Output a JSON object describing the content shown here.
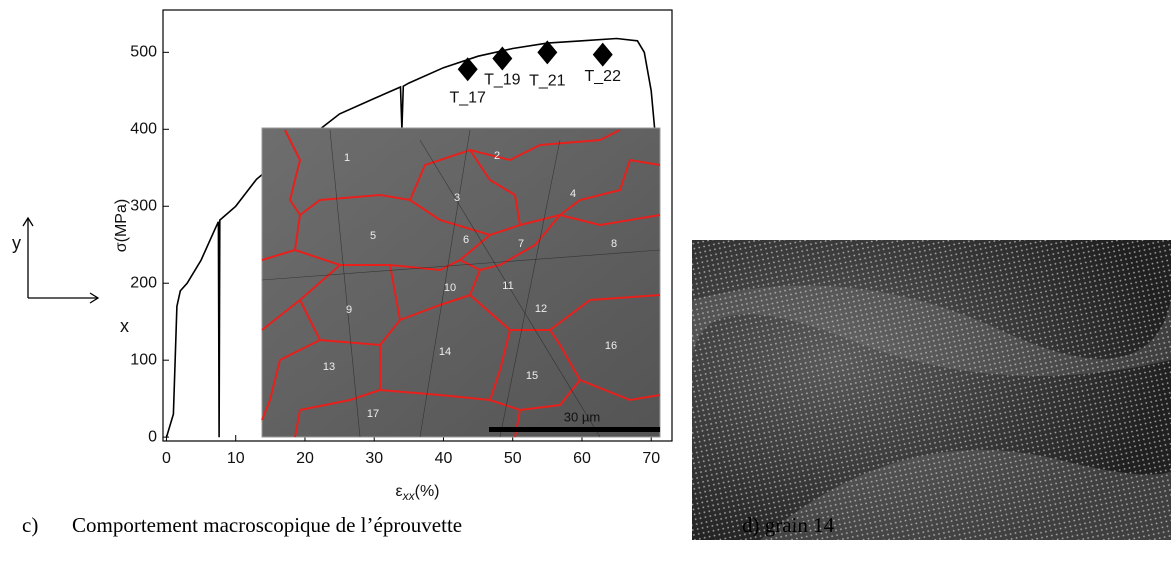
{
  "chart_data": {
    "type": "line",
    "y_label": "σ(MPa)",
    "x_label_symbol": "ε",
    "x_label_subscript": "xx",
    "x_label_unit": "(%)",
    "xlim": [
      -0.5,
      73
    ],
    "ylim": [
      -5,
      555
    ],
    "xticks": [
      0,
      10,
      20,
      30,
      40,
      50,
      60,
      70
    ],
    "yticks": [
      0,
      100,
      200,
      300,
      400,
      500
    ],
    "series": [
      {
        "color": "#000000",
        "x": [
          0,
          1,
          1.5,
          2,
          3,
          5,
          7,
          7.5,
          7.6,
          7.7,
          10,
          13,
          15,
          20,
          25,
          30,
          33.8,
          34,
          34.2,
          35,
          40,
          45,
          50,
          55,
          60,
          65,
          68,
          69,
          70,
          70.5
        ],
        "values": [
          0,
          30,
          170,
          190,
          200,
          230,
          270,
          280,
          0,
          282,
          300,
          335,
          350,
          385,
          420,
          440,
          455,
          400,
          456,
          460,
          480,
          495,
          505,
          512,
          515,
          518,
          515,
          500,
          450,
          400
        ]
      }
    ],
    "markers": {
      "color": "#000000",
      "x": [
        43.5,
        48.5,
        55,
        63
      ],
      "values": [
        478,
        492,
        500,
        497
      ],
      "labels": [
        "T_17",
        "T_19",
        "T_21",
        "T_22"
      ]
    }
  },
  "orientation": {
    "x": "x",
    "y": "y"
  },
  "inset": {
    "grain_labels": [
      "1",
      "2",
      "3",
      "4",
      "5",
      "6",
      "7",
      "8",
      "9",
      "10",
      "11",
      "12",
      "13",
      "14",
      "15",
      "16",
      "17"
    ],
    "scale_bar": "30 µm"
  },
  "captions": {
    "c_label": "c)",
    "c_text": "Comportement macroscopique de l’éprouvette",
    "d_text": "d) grain 14"
  }
}
